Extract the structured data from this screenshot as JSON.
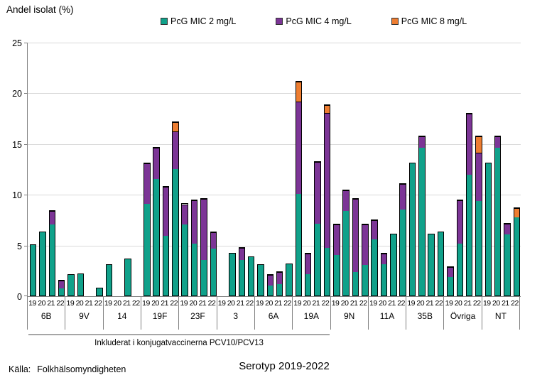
{
  "title": "Andel isolat (%)",
  "source": {
    "prefix": "Källa:",
    "name": "Folkhälsomyndigheten"
  },
  "chart_data": {
    "type": "bar",
    "stacked": true,
    "title": "Andel isolat (%)",
    "xlabel": "Serotyp 2019-2022",
    "ylabel": "Andel isolat (%)",
    "ylim": [
      0,
      25
    ],
    "yticks": [
      0,
      5,
      10,
      15,
      20,
      25
    ],
    "grid": true,
    "legend_position": "top",
    "years": [
      "19",
      "20",
      "21",
      "22"
    ],
    "series": [
      {
        "name": "PcG MIC 2 mg/L",
        "color": "#10A18A"
      },
      {
        "name": "PcG MIC 4 mg/L",
        "color": "#7C3596"
      },
      {
        "name": "PcG MIC 8 mg/L",
        "color": "#ED7D31"
      }
    ],
    "groups": [
      {
        "label": "6B",
        "values": [
          [
            5.0,
            0,
            0
          ],
          [
            6.2,
            0,
            0
          ],
          [
            7.0,
            1.3,
            0
          ],
          [
            0.7,
            0.8,
            0
          ]
        ]
      },
      {
        "label": "9V",
        "values": [
          [
            2.0,
            0,
            0
          ],
          [
            2.1,
            0,
            0
          ],
          [
            0,
            0,
            0
          ],
          [
            0.7,
            0,
            0
          ]
        ]
      },
      {
        "label": "14",
        "values": [
          [
            3.0,
            0,
            0
          ],
          [
            0,
            0,
            0
          ],
          [
            3.6,
            0,
            0
          ],
          [
            0,
            0,
            0
          ]
        ]
      },
      {
        "label": "19F",
        "values": [
          [
            9.0,
            4.0,
            0
          ],
          [
            11.5,
            3.1,
            0
          ],
          [
            5.9,
            4.8,
            0
          ],
          [
            12.5,
            3.7,
            0.9
          ]
        ]
      },
      {
        "label": "23F",
        "values": [
          [
            7.0,
            2.0,
            0
          ],
          [
            5.1,
            4.3,
            0
          ],
          [
            3.5,
            6.0,
            0
          ],
          [
            4.6,
            1.6,
            0
          ]
        ]
      },
      {
        "label": "3",
        "values": [
          [
            0,
            0,
            0
          ],
          [
            4.1,
            0,
            0
          ],
          [
            3.5,
            1.2,
            0
          ],
          [
            3.8,
            0,
            0
          ]
        ]
      },
      {
        "label": "6A",
        "values": [
          [
            3.0,
            0,
            0
          ],
          [
            1.0,
            1.0,
            0
          ],
          [
            1.1,
            1.2,
            0
          ],
          [
            3.1,
            0,
            0
          ]
        ]
      },
      {
        "label": "19A",
        "values": [
          [
            10.0,
            9.1,
            2.0
          ],
          [
            2.1,
            2.0,
            0
          ],
          [
            7.1,
            6.1,
            0
          ],
          [
            4.7,
            13.3,
            0.8
          ]
        ]
      },
      {
        "label": "9N",
        "values": [
          [
            4.0,
            3.0,
            0
          ],
          [
            8.3,
            2.1,
            0
          ],
          [
            2.3,
            7.2,
            0
          ],
          [
            3.0,
            4.0,
            0
          ]
        ]
      },
      {
        "label": "11A",
        "values": [
          [
            5.5,
            1.9,
            0
          ],
          [
            3.1,
            1.0,
            0
          ],
          [
            6.0,
            0,
            0
          ],
          [
            8.5,
            2.5,
            0
          ]
        ]
      },
      {
        "label": "35B",
        "values": [
          [
            13.0,
            0,
            0
          ],
          [
            14.6,
            1.1,
            0
          ],
          [
            6.0,
            0,
            0
          ],
          [
            6.2,
            0,
            0
          ]
        ]
      },
      {
        "label": "Övriga",
        "values": [
          [
            1.8,
            1.0,
            0
          ],
          [
            5.1,
            4.3,
            0
          ],
          [
            11.9,
            6.0,
            0
          ],
          [
            9.3,
            4.8,
            1.6
          ]
        ]
      },
      {
        "label": "NT",
        "values": [
          [
            13.0,
            0,
            0
          ],
          [
            14.6,
            1.1,
            0
          ],
          [
            6.0,
            1.1,
            0
          ],
          [
            7.7,
            0,
            0.9
          ]
        ]
      }
    ],
    "bracket_label": "Inkluderat i konjugatvaccinerna PCV10/PCV13",
    "bracket_group_span": 8
  }
}
